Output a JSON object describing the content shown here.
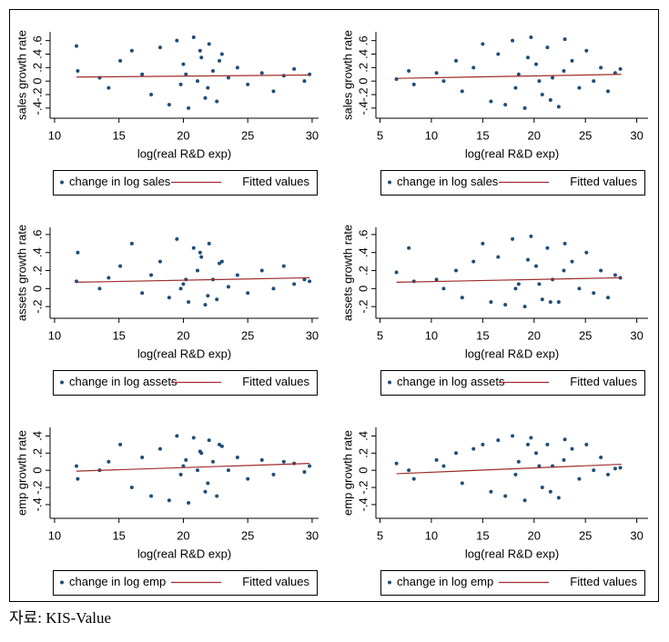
{
  "chart_data": [
    {
      "type": "scatter",
      "xlabel": "log(real R&D exp)",
      "ylabel": "sales growth rate",
      "xlim": [
        9.65,
        30.5
      ],
      "xticks": [
        10,
        15,
        20,
        25,
        30
      ],
      "ylim": [
        -0.55,
        0.73
      ],
      "yticks": [
        {
          "value": -0.4,
          "label": "-.4"
        },
        {
          "value": -0.2,
          "label": "-.2"
        },
        0,
        {
          "value": 0.2,
          "label": ".2"
        },
        {
          "value": 0.4,
          "label": ".4"
        },
        {
          "value": 0.6,
          "label": ".6"
        }
      ],
      "series": [
        {
          "name": "change in log sales",
          "type": "scatter",
          "color": "#1f4e79",
          "x": [
            11.7,
            11.8,
            13.5,
            14.2,
            15.1,
            16.0,
            16.8,
            17.5,
            18.2,
            18.9,
            19.5,
            20.0,
            20.4,
            20.8,
            21.1,
            21.4,
            21.7,
            22.0,
            22.3,
            22.6,
            23.0,
            23.5,
            24.2,
            25.0,
            26.1,
            27.0,
            27.8,
            28.6,
            29.4,
            29.8,
            20.2,
            21.9,
            22.8,
            19.8,
            21.3
          ],
          "values": [
            0.52,
            0.15,
            0.05,
            -0.1,
            0.3,
            0.45,
            0.1,
            -0.2,
            0.5,
            -0.35,
            0.6,
            0.25,
            -0.4,
            0.65,
            0.0,
            0.35,
            -0.25,
            0.55,
            0.15,
            -0.3,
            0.4,
            0.05,
            0.2,
            -0.05,
            0.12,
            -0.15,
            0.08,
            0.18,
            0.0,
            0.1,
            0.1,
            -0.1,
            0.3,
            -0.05,
            0.45
          ]
        },
        {
          "name": "Fitted values",
          "type": "line",
          "color": "#a02c2c",
          "x": [
            11.7,
            29.8
          ],
          "values": [
            0.06,
            0.09
          ]
        }
      ]
    },
    {
      "type": "scatter",
      "xlabel": "log(real R&D exp)",
      "ylabel": "sales growth rate",
      "xlim": [
        4.6,
        31.1
      ],
      "xticks": [
        5,
        10,
        15,
        20,
        25,
        30
      ],
      "ylim": [
        -0.55,
        0.73
      ],
      "yticks": [
        {
          "value": -0.4,
          "label": "-.4"
        },
        {
          "value": -0.2,
          "label": "-.2"
        },
        0,
        {
          "value": 0.2,
          "label": ".2"
        },
        {
          "value": 0.4,
          "label": ".4"
        },
        {
          "value": 0.6,
          "label": ".6"
        }
      ],
      "series": [
        {
          "name": "change in log sales",
          "type": "scatter",
          "color": "#1f4e79",
          "x": [
            6.6,
            7.8,
            8.3,
            10.5,
            11.2,
            12.4,
            13.0,
            14.1,
            15.0,
            15.8,
            16.5,
            17.2,
            17.9,
            18.5,
            19.1,
            19.7,
            20.2,
            20.8,
            21.3,
            21.8,
            22.4,
            23.0,
            23.7,
            24.4,
            25.1,
            25.8,
            26.5,
            27.2,
            27.9,
            28.4,
            20.5,
            21.6,
            19.4,
            22.9,
            18.2
          ],
          "values": [
            0.03,
            0.15,
            -0.05,
            0.12,
            0.0,
            0.3,
            -0.15,
            0.2,
            0.55,
            -0.3,
            0.4,
            -0.35,
            0.6,
            0.1,
            -0.4,
            0.65,
            0.25,
            -0.2,
            0.5,
            0.05,
            -0.38,
            0.62,
            0.3,
            -0.1,
            0.45,
            0.0,
            0.2,
            -0.15,
            0.12,
            0.18,
            0.0,
            -0.28,
            0.35,
            0.15,
            -0.1
          ]
        },
        {
          "name": "Fitted values",
          "type": "line",
          "color": "#a02c2c",
          "x": [
            6.6,
            28.5
          ],
          "values": [
            0.04,
            0.1
          ]
        }
      ]
    },
    {
      "type": "scatter",
      "xlabel": "log(real R&D exp)",
      "ylabel": "assets growth rate",
      "xlim": [
        9.65,
        30.5
      ],
      "xticks": [
        10,
        15,
        20,
        25,
        30
      ],
      "ylim": [
        -0.33,
        0.68
      ],
      "yticks": [
        {
          "value": -0.2,
          "label": "-.2"
        },
        0,
        {
          "value": 0.2,
          "label": ".2"
        },
        {
          "value": 0.4,
          "label": ".4"
        },
        {
          "value": 0.6,
          "label": ".6"
        }
      ],
      "series": [
        {
          "name": "change in log assets",
          "type": "scatter",
          "color": "#1f4e79",
          "x": [
            11.7,
            11.8,
            13.5,
            14.2,
            15.1,
            16.0,
            16.8,
            17.5,
            18.2,
            18.9,
            19.5,
            20.0,
            20.4,
            20.8,
            21.1,
            21.4,
            21.7,
            22.0,
            22.3,
            22.6,
            23.0,
            23.5,
            24.2,
            25.0,
            26.1,
            27.0,
            27.8,
            28.6,
            29.4,
            29.8,
            20.2,
            21.9,
            22.8,
            19.8,
            21.3
          ],
          "values": [
            0.08,
            0.4,
            0.0,
            0.12,
            0.25,
            0.5,
            -0.05,
            0.15,
            0.3,
            -0.1,
            0.55,
            0.05,
            -0.15,
            0.45,
            0.2,
            0.35,
            -0.18,
            0.5,
            0.1,
            -0.12,
            0.3,
            0.02,
            0.15,
            -0.05,
            0.2,
            0.0,
            0.25,
            0.05,
            0.1,
            0.08,
            0.1,
            -0.08,
            0.28,
            0.0,
            0.4
          ]
        },
        {
          "name": "Fitted values",
          "type": "line",
          "color": "#a02c2c",
          "x": [
            11.7,
            29.8
          ],
          "values": [
            0.07,
            0.12
          ]
        }
      ]
    },
    {
      "type": "scatter",
      "xlabel": "log(real R&D exp)",
      "ylabel": "assets growth rate",
      "xlim": [
        4.6,
        31.1
      ],
      "xticks": [
        5,
        10,
        15,
        20,
        25,
        30
      ],
      "ylim": [
        -0.33,
        0.68
      ],
      "yticks": [
        {
          "value": -0.2,
          "label": "-.2"
        },
        0,
        {
          "value": 0.2,
          "label": ".2"
        },
        {
          "value": 0.4,
          "label": ".4"
        },
        {
          "value": 0.6,
          "label": ".6"
        }
      ],
      "series": [
        {
          "name": "change in log assets",
          "type": "scatter",
          "color": "#1f4e79",
          "x": [
            6.6,
            7.8,
            8.3,
            10.5,
            11.2,
            12.4,
            13.0,
            14.1,
            15.0,
            15.8,
            16.5,
            17.2,
            17.9,
            18.5,
            19.1,
            19.7,
            20.2,
            20.8,
            21.3,
            21.8,
            22.4,
            23.0,
            23.7,
            24.4,
            25.1,
            25.8,
            26.5,
            27.2,
            27.9,
            28.4,
            20.5,
            21.6,
            19.4,
            22.9,
            18.2
          ],
          "values": [
            0.18,
            0.45,
            0.08,
            0.1,
            0.0,
            0.2,
            -0.1,
            0.3,
            0.5,
            -0.15,
            0.35,
            -0.18,
            0.55,
            0.05,
            -0.2,
            0.58,
            0.25,
            -0.12,
            0.45,
            0.1,
            -0.15,
            0.5,
            0.3,
            0.0,
            0.4,
            -0.05,
            0.2,
            -0.1,
            0.15,
            0.12,
            0.05,
            -0.15,
            0.32,
            0.2,
            0.0
          ]
        },
        {
          "name": "Fitted values",
          "type": "line",
          "color": "#a02c2c",
          "x": [
            6.6,
            28.5
          ],
          "values": [
            0.07,
            0.12
          ]
        }
      ]
    },
    {
      "type": "scatter",
      "xlabel": "log(real R&D exp)",
      "ylabel": "emp growth rate",
      "xlim": [
        9.65,
        30.5
      ],
      "xticks": [
        10,
        15,
        20,
        25,
        30
      ],
      "ylim": [
        -0.56,
        0.5
      ],
      "yticks": [
        {
          "value": -0.4,
          "label": "-.4"
        },
        {
          "value": -0.2,
          "label": "-.2"
        },
        0,
        {
          "value": 0.2,
          "label": ".2"
        },
        {
          "value": 0.4,
          "label": ".4"
        }
      ],
      "series": [
        {
          "name": "change in log emp",
          "type": "scatter",
          "color": "#1f4e79",
          "x": [
            11.7,
            11.8,
            13.5,
            14.2,
            15.1,
            16.0,
            16.8,
            17.5,
            18.2,
            18.9,
            19.5,
            20.0,
            20.4,
            20.8,
            21.1,
            21.4,
            21.7,
            22.0,
            22.3,
            22.6,
            23.0,
            23.5,
            24.2,
            25.0,
            26.1,
            27.0,
            27.8,
            28.6,
            29.4,
            29.8,
            20.2,
            21.9,
            22.8,
            19.8,
            21.3
          ],
          "values": [
            0.05,
            -0.1,
            0.0,
            0.1,
            0.3,
            -0.2,
            0.15,
            -0.3,
            0.25,
            -0.35,
            0.4,
            0.05,
            -0.38,
            0.38,
            0.0,
            0.2,
            -0.25,
            0.35,
            0.1,
            -0.3,
            0.28,
            0.0,
            0.15,
            -0.1,
            0.12,
            -0.05,
            0.1,
            0.08,
            -0.02,
            0.05,
            0.12,
            -0.15,
            0.3,
            -0.05,
            0.22
          ]
        },
        {
          "name": "Fitted values",
          "type": "line",
          "color": "#a02c2c",
          "x": [
            11.7,
            29.8
          ],
          "values": [
            -0.01,
            0.08
          ]
        }
      ]
    },
    {
      "type": "scatter",
      "xlabel": "log(real R&D exp)",
      "ylabel": "emp growth rate",
      "xlim": [
        4.6,
        31.1
      ],
      "xticks": [
        5,
        10,
        15,
        20,
        25,
        30
      ],
      "ylim": [
        -0.56,
        0.5
      ],
      "yticks": [
        {
          "value": -0.4,
          "label": "-.4"
        },
        {
          "value": -0.2,
          "label": "-.2"
        },
        0,
        {
          "value": 0.2,
          "label": ".2"
        },
        {
          "value": 0.4,
          "label": ".4"
        }
      ],
      "series": [
        {
          "name": "change in log emp",
          "type": "scatter",
          "color": "#1f4e79",
          "x": [
            6.6,
            7.8,
            8.3,
            10.5,
            11.2,
            12.4,
            13.0,
            14.1,
            15.0,
            15.8,
            16.5,
            17.2,
            17.9,
            18.5,
            19.1,
            19.7,
            20.2,
            20.8,
            21.3,
            21.8,
            22.4,
            23.0,
            23.7,
            24.4,
            25.1,
            25.8,
            26.5,
            27.2,
            27.9,
            28.4,
            20.5,
            21.6,
            19.4,
            22.9,
            18.2
          ],
          "values": [
            0.08,
            0.0,
            -0.1,
            0.12,
            0.05,
            0.2,
            -0.15,
            0.25,
            0.3,
            -0.25,
            0.35,
            -0.3,
            0.4,
            0.1,
            -0.35,
            0.38,
            0.2,
            -0.2,
            0.3,
            0.05,
            -0.32,
            0.36,
            0.25,
            -0.1,
            0.3,
            0.0,
            0.15,
            -0.05,
            0.02,
            0.03,
            0.05,
            -0.25,
            0.3,
            0.12,
            -0.05
          ]
        },
        {
          "name": "Fitted values",
          "type": "line",
          "color": "#a02c2c",
          "x": [
            6.6,
            28.5
          ],
          "values": [
            -0.04,
            0.07
          ]
        }
      ]
    }
  ],
  "source": "자료:  KIS-Value"
}
